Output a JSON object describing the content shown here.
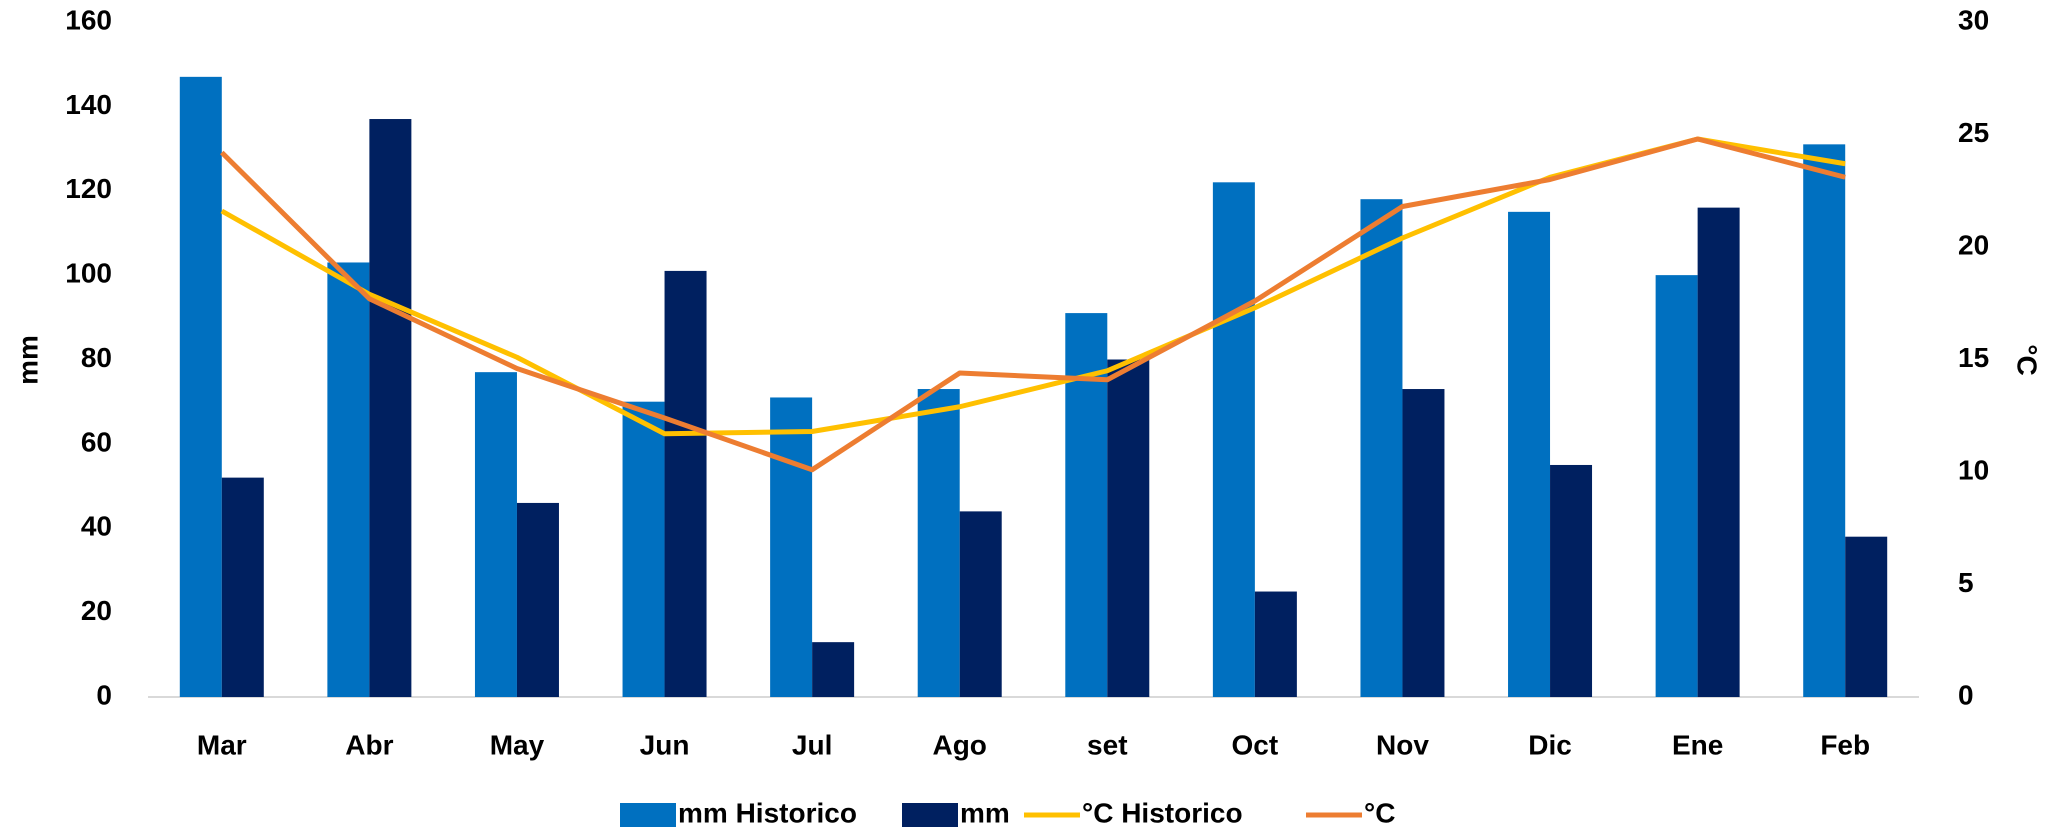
{
  "chart_data": {
    "type": "bar_line",
    "categories": [
      "Mar",
      "Abr",
      "May",
      "Jun",
      "Jul",
      "Ago",
      "set",
      "Oct",
      "Nov",
      "Dic",
      "Ene",
      "Feb"
    ],
    "y_label": "mm",
    "y2_label": "°C",
    "ylim": [
      0,
      160
    ],
    "yticks": [
      0,
      20,
      40,
      60,
      80,
      100,
      120,
      140,
      160
    ],
    "y2lim": [
      0,
      30
    ],
    "y2ticks": [
      0,
      5,
      10,
      15,
      20,
      25,
      30
    ],
    "series": [
      {
        "name": "mm Historico",
        "type": "bar",
        "color": "#0070c0",
        "values": [
          147,
          103,
          77,
          70,
          71,
          73,
          91,
          122,
          118,
          115,
          100,
          131
        ]
      },
      {
        "name": "mm",
        "type": "bar",
        "color": "#002060",
        "values": [
          52,
          137,
          46,
          101,
          13,
          44,
          80,
          25,
          73,
          55,
          116,
          38
        ]
      },
      {
        "name": "°C Historico",
        "type": "line",
        "axis": "y2",
        "color": "#ffc000",
        "values": [
          21.6,
          17.9,
          15.1,
          11.7,
          11.8,
          12.9,
          14.5,
          17.3,
          20.4,
          23.1,
          24.8,
          23.7
        ]
      },
      {
        "name": "°C",
        "type": "line",
        "axis": "y2",
        "color": "#ed7d31",
        "values": [
          24.2,
          17.7,
          14.6,
          12.4,
          10.1,
          14.4,
          14.1,
          17.6,
          21.8,
          23.0,
          24.8,
          23.1
        ]
      }
    ]
  }
}
